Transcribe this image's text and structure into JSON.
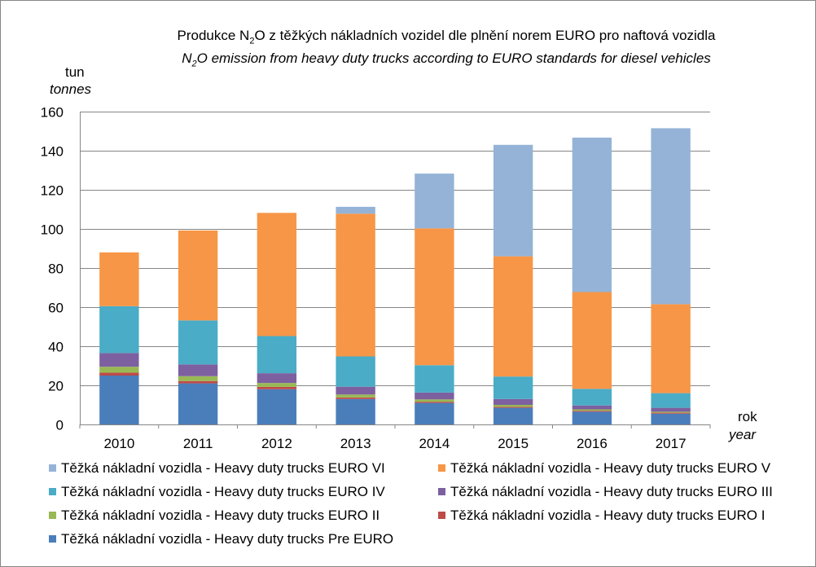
{
  "chart_data": {
    "type": "bar",
    "stacked": true,
    "title_cz_pre": "Produkce N",
    "title_cz_sub": "2",
    "title_cz_post": "O z těžkých nákladních  vozidel dle plnění norem EURO pro naftová vozidla",
    "title_en_pre": "N",
    "title_en_sub": "2",
    "title_en_post": "O emission from heavy duty trucks according to EURO standards for diesel vehicles",
    "ylabel_cz": "tun",
    "ylabel_en": "tonnes",
    "xlabel_cz": "rok",
    "xlabel_en": "year",
    "ylim": [
      0,
      160
    ],
    "yticks": [
      0,
      20,
      40,
      60,
      80,
      100,
      120,
      140,
      160
    ],
    "grid": true,
    "categories": [
      "2010",
      "2011",
      "2012",
      "2013",
      "2014",
      "2015",
      "2016",
      "2017"
    ],
    "series": [
      {
        "name": "Těžká nákladní vozidla - Heavy duty trucks Pre EURO",
        "color": "#4a7ebb",
        "values": [
          25,
          21,
          18,
          13,
          11,
          8.5,
          6.5,
          5.5
        ]
      },
      {
        "name": "Těžká nákladní vozidla - Heavy duty trucks EURO I",
        "color": "#be4b48",
        "values": [
          1.5,
          1.2,
          1.2,
          0.8,
          0.6,
          0.5,
          0.5,
          0.5
        ]
      },
      {
        "name": "Těžká nákladní vozidla - Heavy duty trucks EURO II",
        "color": "#98b954",
        "values": [
          3,
          2.5,
          2,
          1.5,
          1.2,
          1,
          0.7,
          0.5
        ]
      },
      {
        "name": "Těžká nákladní vozidla - Heavy duty trucks EURO III",
        "color": "#7d60a0",
        "values": [
          7,
          6,
          5,
          4,
          3.5,
          3,
          2,
          2
        ]
      },
      {
        "name": "Těžká nákladní vozidla - Heavy duty trucks EURO IV",
        "color": "#4aacc6",
        "values": [
          24,
          22.5,
          19,
          15.5,
          14,
          11.5,
          8.5,
          7.5
        ]
      },
      {
        "name": "Těžká nákladní vozidla - Heavy duty trucks EURO V",
        "color": "#f79646",
        "values": [
          27.5,
          46,
          63,
          73,
          70,
          61.5,
          49.5,
          45.5
        ]
      },
      {
        "name": "Těžká nákladní vozidla - Heavy duty trucks EURO VI",
        "color": "#95b3d7",
        "values": [
          0,
          0,
          0,
          3.5,
          28,
          57,
          79,
          90
        ]
      }
    ],
    "legend_order": [
      6,
      5,
      4,
      3,
      2,
      1,
      0
    ]
  }
}
